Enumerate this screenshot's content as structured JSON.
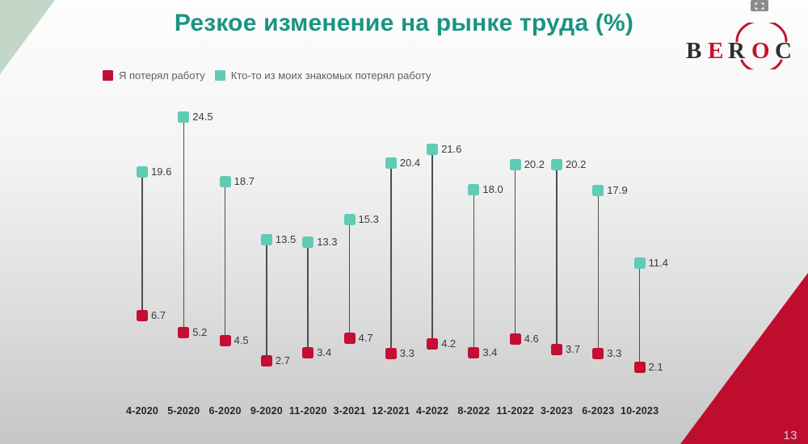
{
  "title": "Резкое изменение на рынке труда (%)",
  "page_number": "13",
  "logo": {
    "name": "BEROC",
    "letters": [
      "B",
      "E",
      "R",
      "O",
      "C"
    ],
    "dark_color": "#2e2d33",
    "red_color": "#c3132f"
  },
  "window_controls": {
    "expand_button": "expand"
  },
  "colors": {
    "title_teal": "#1a9480",
    "marker_teal": "#5fccb3",
    "marker_red": "#c40e33",
    "corner_sage": "#c3d7c9",
    "corner_red": "#bf0d2e",
    "stem_gray": "#4e4e4e"
  },
  "legend": [
    {
      "label": "Я потерял работу",
      "color": "#c40e33"
    },
    {
      "label": "Кто-то из моих знакомых потерял работу",
      "color": "#5fccb3"
    }
  ],
  "chart_data": {
    "type": "dumbbell",
    "title": "Резкое изменение на рынке труда (%)",
    "categories": [
      "4-2020",
      "5-2020",
      "6-2020",
      "9-2020",
      "11-2020",
      "3-2021",
      "12-2021",
      "4-2022",
      "8-2022",
      "11-2022",
      "3-2023",
      "6-2023",
      "10-2023"
    ],
    "series": [
      {
        "name": "Я потерял работу",
        "color": "#c40e33",
        "values": [
          6.7,
          5.2,
          4.5,
          2.7,
          3.4,
          4.7,
          3.3,
          4.2,
          3.4,
          4.6,
          3.7,
          3.3,
          2.1
        ]
      },
      {
        "name": "Кто-то из моих знакомых потерял работу",
        "color": "#5fccb3",
        "values": [
          19.6,
          24.5,
          18.7,
          13.5,
          13.3,
          15.3,
          20.4,
          21.6,
          18.0,
          20.2,
          20.2,
          17.9,
          11.4
        ]
      }
    ],
    "xlabel": "",
    "ylabel": "",
    "ylim": [
      0,
      26
    ],
    "grid": false,
    "data_labels": true,
    "legend_position": "top-left"
  }
}
